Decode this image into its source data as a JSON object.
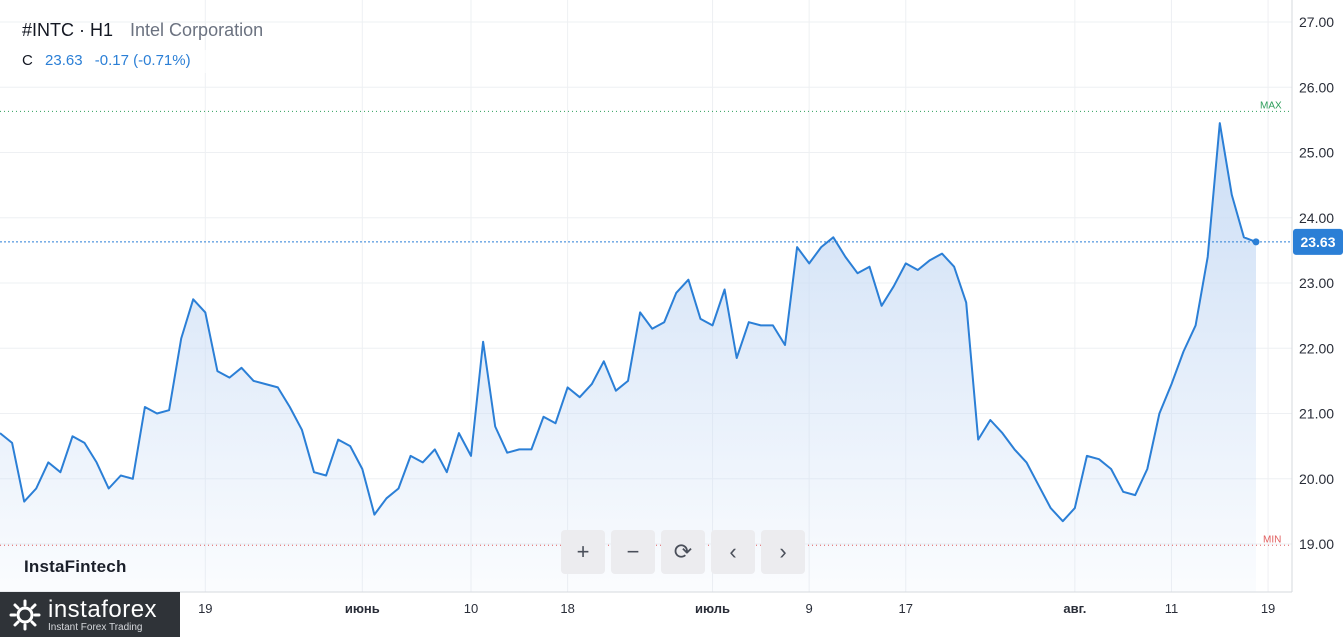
{
  "header": {
    "symbol": "#INTC · H1",
    "name": "Intel Corporation"
  },
  "ohlc": {
    "label": "C",
    "close": "23.63",
    "change": "-0.17 (-0.71%)"
  },
  "brand": "InstaFintech",
  "logo": {
    "title": "instaforex",
    "subtitle": "Instant Forex Trading"
  },
  "controls": [
    {
      "name": "zoom-in-button",
      "icon": "plus-icon",
      "glyph": "+"
    },
    {
      "name": "zoom-out-button",
      "icon": "minus-icon",
      "glyph": "−"
    },
    {
      "name": "reset-button",
      "icon": "reset-icon",
      "glyph": "⟳"
    },
    {
      "name": "scroll-left-button",
      "icon": "chevron-left-icon",
      "glyph": "‹"
    },
    {
      "name": "scroll-right-button",
      "icon": "chevron-right-icon",
      "glyph": "›"
    }
  ],
  "colors": {
    "line": "#2b7fd6",
    "fill_top": "#c9dcf5",
    "max": "#2e9e5b",
    "min": "#e05d5d",
    "price_badge": "#2b7fd6"
  },
  "chart_data": {
    "type": "area",
    "ylim": [
      18.4,
      27.2
    ],
    "y_ticks": [
      "19.00",
      "20.00",
      "21.00",
      "22.00",
      "23.00",
      "24.00",
      "25.00",
      "26.00",
      "27.00"
    ],
    "x_ticks": [
      {
        "label": "19",
        "i": 17
      },
      {
        "label": "июнь",
        "i": 30
      },
      {
        "label": "10",
        "i": 39
      },
      {
        "label": "18",
        "i": 47
      },
      {
        "label": "июль",
        "i": 59
      },
      {
        "label": "9",
        "i": 67
      },
      {
        "label": "17",
        "i": 75
      },
      {
        "label": "авг.",
        "i": 89
      },
      {
        "label": "11",
        "i": 97
      },
      {
        "label": "19",
        "i": 105
      }
    ],
    "max": {
      "label": "MAX",
      "value": 25.63
    },
    "min": {
      "label": "MIN",
      "value": 18.98
    },
    "last": {
      "label": "23.63",
      "value": 23.63
    },
    "values": [
      20.7,
      20.55,
      19.65,
      19.85,
      20.25,
      20.1,
      20.65,
      20.55,
      20.25,
      19.85,
      20.05,
      20.0,
      21.1,
      21.0,
      21.05,
      22.15,
      22.75,
      22.55,
      21.65,
      21.55,
      21.7,
      21.5,
      21.45,
      21.4,
      21.1,
      20.75,
      20.1,
      20.05,
      20.6,
      20.5,
      20.15,
      19.45,
      19.7,
      19.85,
      20.35,
      20.25,
      20.45,
      20.1,
      20.7,
      20.35,
      22.1,
      20.8,
      20.4,
      20.45,
      20.45,
      20.95,
      20.85,
      21.4,
      21.25,
      21.45,
      21.8,
      21.35,
      21.5,
      22.55,
      22.3,
      22.4,
      22.85,
      23.05,
      22.45,
      22.35,
      22.9,
      21.85,
      22.4,
      22.35,
      22.35,
      22.05,
      23.55,
      23.3,
      23.55,
      23.7,
      23.4,
      23.15,
      23.25,
      22.65,
      22.95,
      23.3,
      23.2,
      23.35,
      23.45,
      23.25,
      22.7,
      20.6,
      20.9,
      20.7,
      20.45,
      20.25,
      19.9,
      19.55,
      19.35,
      19.55,
      20.35,
      20.3,
      20.15,
      19.8,
      19.75,
      20.15,
      21.0,
      21.45,
      21.95,
      22.35,
      23.4,
      25.45,
      24.35,
      23.7,
      23.63
    ]
  }
}
